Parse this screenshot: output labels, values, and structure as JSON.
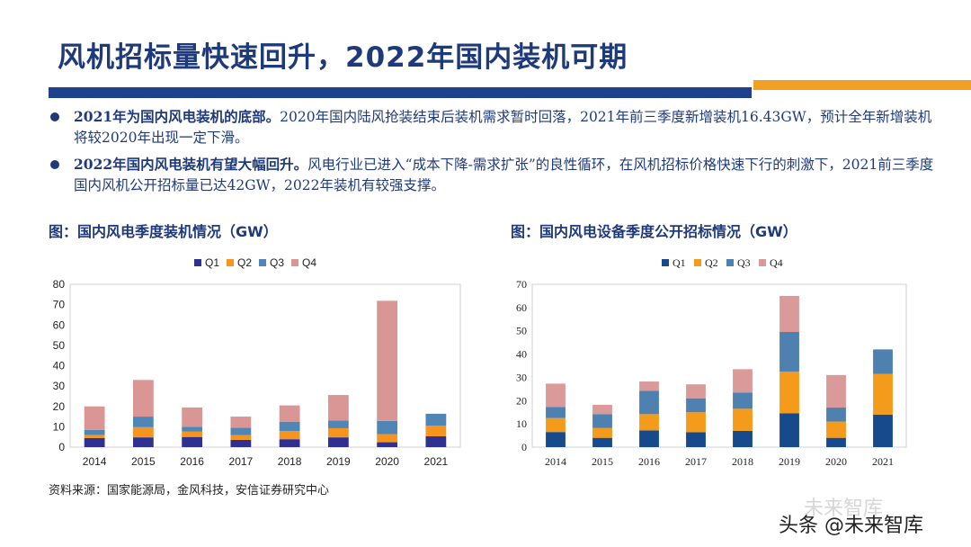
{
  "header": {
    "title": "风机招标量快速回升，2022年国内装机可期"
  },
  "bullets": [
    {
      "bold": "2021年为国内风电装机的底部。",
      "text": "2020年国内陆风抢装结束后装机需求暂时回落，2021年前三季度新增装机16.43GW，预计全年新增装机将较2020年出现一定下滑。"
    },
    {
      "bold": "2022年国内风电装机有望大幅回升。",
      "text": "风电行业已进入“成本下降-需求扩张”的良性循环，在风机招标价格快速下行的刺激下，2021前三季度国内风机公开招标量已达42GW，2022年装机有较强支撑。"
    }
  ],
  "colors": {
    "q1": "#2e3192",
    "q2": "#f7941d",
    "q3": "#4f86b5",
    "q4": "#d99694",
    "q1_right": "#174a8c",
    "q2_right": "#f59b1b",
    "q3_right": "#4f81b0",
    "q4_right": "#d99a99",
    "title": "#1f3a7a",
    "accent_orange": "#f2a024"
  },
  "chart_data": [
    {
      "title": "图：国内风电季度装机情况（GW）",
      "type": "bar",
      "stacked": true,
      "categories": [
        "2014",
        "2015",
        "2016",
        "2017",
        "2018",
        "2019",
        "2020",
        "2021"
      ],
      "series": [
        {
          "name": "Q1",
          "values": [
            4.5,
            4.8,
            5.0,
            3.6,
            3.9,
            4.8,
            2.4,
            5.3
          ]
        },
        {
          "name": "Q2",
          "values": [
            1.5,
            5.0,
            2.6,
            2.3,
            4.0,
            4.5,
            4.0,
            5.3
          ]
        },
        {
          "name": "Q3",
          "values": [
            2.5,
            5.2,
            2.4,
            3.7,
            4.6,
            3.8,
            6.5,
            5.8
          ]
        },
        {
          "name": "Q4",
          "values": [
            11.5,
            18.0,
            9.5,
            5.4,
            8.0,
            12.5,
            59.0,
            0
          ]
        }
      ],
      "ylim": [
        0,
        80
      ],
      "yticks": [
        0,
        10,
        20,
        30,
        40,
        50,
        60,
        70,
        80
      ],
      "legend": "top"
    },
    {
      "title": "图：国内风电设备季度公开招标情况（GW）",
      "type": "bar",
      "stacked": true,
      "categories": [
        "2014",
        "2015",
        "2016",
        "2017",
        "2018",
        "2019",
        "2020",
        "2021"
      ],
      "series": [
        {
          "name": "Q1",
          "values": [
            6.5,
            4.0,
            7.2,
            6.4,
            7.0,
            14.5,
            4.0,
            14.0
          ]
        },
        {
          "name": "Q2",
          "values": [
            6.0,
            4.2,
            7.0,
            8.6,
            9.5,
            18.0,
            7.0,
            17.5
          ]
        },
        {
          "name": "Q3",
          "values": [
            4.8,
            6.0,
            10.0,
            6.0,
            7.0,
            17.0,
            6.0,
            10.5
          ]
        },
        {
          "name": "Q4",
          "values": [
            10.0,
            4.0,
            4.0,
            6.0,
            10.0,
            15.5,
            14.0,
            0
          ]
        }
      ],
      "ylim": [
        0,
        70
      ],
      "yticks": [
        0,
        10,
        20,
        30,
        40,
        50,
        60,
        70
      ],
      "legend": "top"
    }
  ],
  "source": "资料来源：国家能源局，金风科技，安信证券研究中心",
  "watermark": {
    "brand": "未来智库",
    "credit": "头条 @未来智库"
  }
}
